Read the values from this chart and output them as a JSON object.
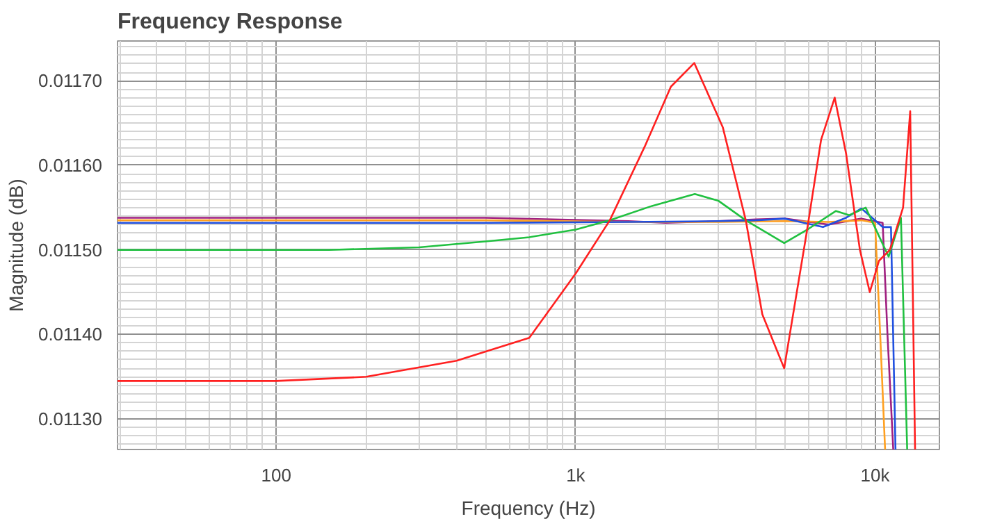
{
  "chart_data": {
    "type": "line",
    "title": "Frequency Response",
    "xlabel": "Frequency (Hz)",
    "ylabel": "Magnitude (dB)",
    "log": "x",
    "grid": true,
    "marker": "none",
    "line_style": "solid",
    "xlim": [
      29.5,
      16400
    ],
    "ylim": [
      0.011264,
      0.011747
    ],
    "xticks": [
      100,
      {
        "value": 1000,
        "label": "1k"
      },
      {
        "value": 10000,
        "label": "10k"
      }
    ],
    "yticks": [
      {
        "value": 0.0113,
        "label": "0.01130"
      },
      {
        "value": 0.0114,
        "label": "0.01140"
      },
      {
        "value": 0.0115,
        "label": "0.01150"
      },
      {
        "value": 0.0116,
        "label": "0.01160"
      },
      {
        "value": 0.0117,
        "label": "0.01170"
      }
    ],
    "series": [
      {
        "color": "#a02080",
        "x": [
          29.5,
          100,
          500,
          1500,
          2000,
          3000,
          4000,
          5000,
          7000,
          9000,
          10600,
          11000,
          11500
        ],
        "values": [
          0.011538,
          0.011538,
          0.011538,
          0.011534,
          0.011532,
          0.011534,
          0.011536,
          0.011537,
          0.01153,
          0.011537,
          0.011532,
          0.0114,
          0.011264
        ]
      },
      {
        "color": "#ffa020",
        "x": [
          29.5,
          100,
          500,
          1500,
          3000,
          5000,
          7000,
          9000,
          10000,
          10400,
          10800
        ],
        "values": [
          0.011535,
          0.011535,
          0.011535,
          0.011533,
          0.011533,
          0.011534,
          0.011533,
          0.011535,
          0.011532,
          0.0114,
          0.011264
        ]
      },
      {
        "color": "#2050e0",
        "x": [
          29.5,
          100,
          500,
          1500,
          3000,
          4000,
          5000,
          6700,
          8000,
          9000,
          10600,
          11300,
          11700
        ],
        "values": [
          0.011532,
          0.011532,
          0.011532,
          0.011533,
          0.011534,
          0.011535,
          0.011537,
          0.011527,
          0.011538,
          0.011549,
          0.011527,
          0.011527,
          0.011264
        ]
      },
      {
        "color": "#20c040",
        "x": [
          29.5,
          150,
          300,
          500,
          700,
          1000,
          1300,
          1800,
          2500,
          3000,
          3700,
          4970,
          6000,
          7400,
          8200,
          9300,
          11100,
          12200,
          12800
        ],
        "values": [
          0.0115,
          0.0115,
          0.011503,
          0.01151,
          0.011515,
          0.011524,
          0.011535,
          0.011552,
          0.011566,
          0.011558,
          0.011535,
          0.011508,
          0.011525,
          0.011546,
          0.011541,
          0.01155,
          0.011492,
          0.011538,
          0.011264
        ]
      },
      {
        "color": "#ff2020",
        "x": [
          29.5,
          100,
          200,
          400,
          700,
          1000,
          1300,
          1700,
          2080,
          2490,
          3100,
          3700,
          4200,
          4970,
          5900,
          6600,
          7330,
          8000,
          8900,
          9600,
          10300,
          11200,
          12400,
          13100,
          13600
        ],
        "values": [
          0.011345,
          0.011345,
          0.01135,
          0.011369,
          0.011396,
          0.011472,
          0.011535,
          0.011622,
          0.011693,
          0.011721,
          0.011645,
          0.011535,
          0.011424,
          0.01136,
          0.011519,
          0.01163,
          0.01168,
          0.011614,
          0.0115,
          0.01145,
          0.011487,
          0.0115,
          0.01155,
          0.011664,
          0.011264
        ]
      }
    ]
  }
}
